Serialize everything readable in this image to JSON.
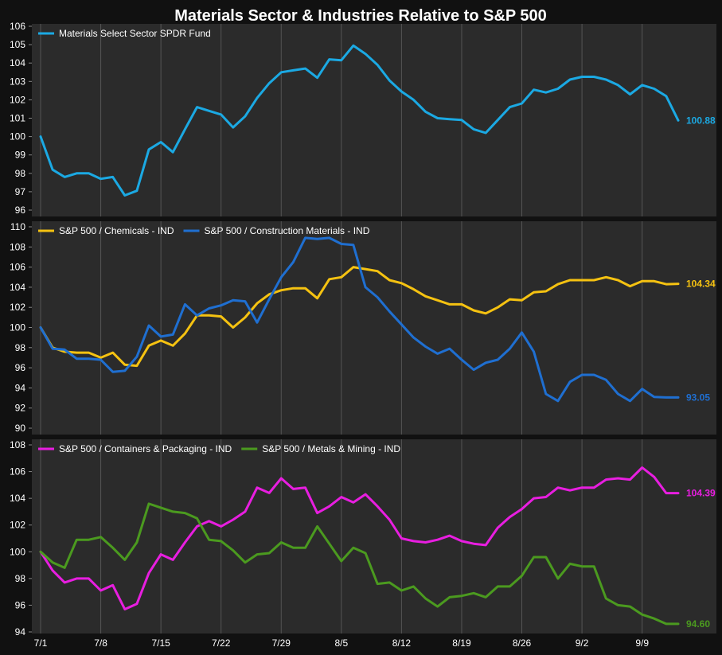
{
  "chart_data": {
    "type": "line",
    "title": "Materials Sector & Industries Relative to S&P 500",
    "x_tick_labels": [
      "7/1",
      "7/8",
      "7/15",
      "7/22",
      "7/29",
      "8/5",
      "8/12",
      "8/19",
      "8/26",
      "9/2",
      "9/9"
    ],
    "grid": true,
    "colors": {
      "background": "#111111",
      "panel": "#2b2b2b",
      "grid": "#555555",
      "text": "#ffffff"
    },
    "panels": [
      {
        "ylim": [
          96,
          106
        ],
        "yticks": [
          "96",
          "97",
          "98",
          "99",
          "100",
          "101",
          "102",
          "103",
          "104",
          "105",
          "106"
        ],
        "legend_position": "top-left",
        "series": [
          {
            "name": "Materials Select Sector SPDR Fund",
            "color": "#1ba9e3",
            "end_label": "100.88",
            "values": [
              100.0,
              98.2,
              97.8,
              98.0,
              98.0,
              97.7,
              97.8,
              96.8,
              97.05,
              99.3,
              99.7,
              99.15,
              100.4,
              101.6,
              101.4,
              101.2,
              100.5,
              101.1,
              102.1,
              102.9,
              103.5,
              103.6,
              103.7,
              103.2,
              104.2,
              104.15,
              104.95,
              104.5,
              103.9,
              103.05,
              102.45,
              102.0,
              101.35,
              101.0,
              100.95,
              100.9,
              100.4,
              100.2,
              100.9,
              101.6,
              101.8,
              102.55,
              102.4,
              102.6,
              103.1,
              103.25,
              103.25,
              103.1,
              102.8,
              102.3,
              102.8,
              102.6,
              102.2,
              100.88
            ]
          }
        ]
      },
      {
        "ylim": [
          90,
          110
        ],
        "yticks": [
          "90",
          "92",
          "94",
          "96",
          "98",
          "100",
          "102",
          "104",
          "106",
          "108",
          "110"
        ],
        "legend_position": "top-left",
        "series": [
          {
            "name": "S&P 500 / Chemicals - IND",
            "color": "#f5c211",
            "end_label": "104.34",
            "values": [
              100.0,
              98.0,
              97.6,
              97.5,
              97.5,
              97.0,
              97.5,
              96.3,
              96.2,
              98.2,
              98.7,
              98.2,
              99.4,
              101.2,
              101.2,
              101.1,
              100.0,
              101.0,
              102.4,
              103.3,
              103.7,
              103.9,
              103.9,
              102.9,
              104.8,
              105.0,
              106.0,
              105.8,
              105.6,
              104.7,
              104.4,
              103.8,
              103.1,
              102.7,
              102.3,
              102.3,
              101.7,
              101.4,
              102.0,
              102.8,
              102.7,
              103.5,
              103.6,
              104.3,
              104.7,
              104.7,
              104.7,
              105.0,
              104.7,
              104.1,
              104.6,
              104.6,
              104.3,
              104.34
            ]
          },
          {
            "name": "S&P 500 / Construction Materials - IND",
            "color": "#1f6fd1",
            "end_label": "93.05",
            "values": [
              100.0,
              97.9,
              97.8,
              96.9,
              96.9,
              96.8,
              95.6,
              95.7,
              97.1,
              100.2,
              99.1,
              99.3,
              102.3,
              101.2,
              101.9,
              102.2,
              102.7,
              102.6,
              100.5,
              102.8,
              105.0,
              106.5,
              108.9,
              108.8,
              108.9,
              108.3,
              108.2,
              104.0,
              103.0,
              101.6,
              100.3,
              99.0,
              98.1,
              97.4,
              97.9,
              96.8,
              95.8,
              96.5,
              96.8,
              97.9,
              99.5,
              97.6,
              93.4,
              92.7,
              94.6,
              95.3,
              95.3,
              94.8,
              93.4,
              92.7,
              93.9,
              93.1,
              93.05,
              93.05
            ]
          }
        ]
      },
      {
        "ylim": [
          94,
          108
        ],
        "yticks": [
          "94",
          "96",
          "98",
          "100",
          "102",
          "104",
          "106",
          "108"
        ],
        "legend_position": "top-left",
        "series": [
          {
            "name": "S&P 500 / Containers & Packaging - IND",
            "color": "#e81ee0",
            "end_label": "104.39",
            "values": [
              100.0,
              98.6,
              97.7,
              98.0,
              98.0,
              97.1,
              97.5,
              95.7,
              96.1,
              98.4,
              99.8,
              99.4,
              100.7,
              101.9,
              102.3,
              101.9,
              102.4,
              103.0,
              104.8,
              104.4,
              105.5,
              104.7,
              104.8,
              102.9,
              103.4,
              104.1,
              103.7,
              104.3,
              103.4,
              102.4,
              101.0,
              100.8,
              100.7,
              100.9,
              101.2,
              100.8,
              100.6,
              100.5,
              101.8,
              102.6,
              103.2,
              104.0,
              104.1,
              104.8,
              104.6,
              104.8,
              104.8,
              105.4,
              105.5,
              105.4,
              106.3,
              105.6,
              104.39,
              104.39
            ]
          },
          {
            "name": "S&P 500 / Metals & Mining - IND",
            "color": "#4b9a1f",
            "end_label": "94.60",
            "values": [
              100.0,
              99.2,
              98.8,
              100.9,
              100.9,
              101.1,
              100.3,
              99.4,
              100.7,
              103.6,
              103.3,
              103.0,
              102.9,
              102.5,
              100.9,
              100.8,
              100.1,
              99.2,
              99.8,
              99.9,
              100.7,
              100.3,
              100.3,
              101.9,
              100.6,
              99.3,
              100.3,
              99.9,
              97.6,
              97.7,
              97.1,
              97.4,
              96.5,
              95.9,
              96.6,
              96.7,
              96.9,
              96.6,
              97.4,
              97.4,
              98.2,
              99.6,
              99.6,
              98.0,
              99.1,
              98.9,
              98.9,
              96.5,
              96.0,
              95.9,
              95.3,
              95.0,
              94.6,
              94.6
            ]
          }
        ]
      }
    ]
  }
}
